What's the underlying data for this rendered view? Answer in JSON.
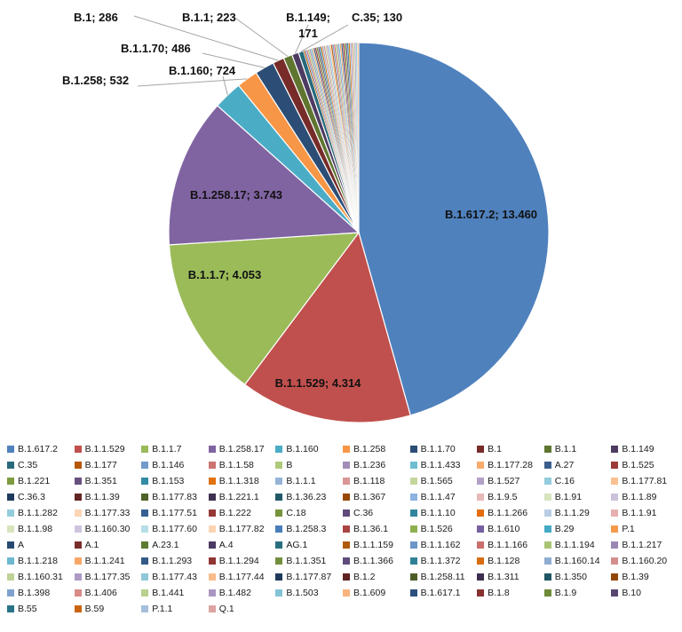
{
  "chart_data": {
    "type": "pie",
    "title": "",
    "slices": [
      {
        "name": "B.1.617.2",
        "value": 13460,
        "label": "B.1.617.2; 13.460",
        "color": "#4F81BD"
      },
      {
        "name": "B.1.1.529",
        "value": 4314,
        "label": "B.1.1.529; 4.314",
        "color": "#C0504D"
      },
      {
        "name": "B.1.1.7",
        "value": 4053,
        "label": "B.1.1.7; 4.053",
        "color": "#9BBB59"
      },
      {
        "name": "B.1.258.17",
        "value": 3743,
        "label": "B.1.258.17; 3.743",
        "color": "#8064A2"
      },
      {
        "name": "B.1.160",
        "value": 724,
        "label": "B.1.160; 724",
        "color": "#4BACC6"
      },
      {
        "name": "B.1.258",
        "value": 532,
        "label": "B.1.258; 532",
        "color": "#F79646"
      },
      {
        "name": "B.1.1.70",
        "value": 486,
        "label": "B.1.1.70; 486",
        "color": "#2C4D75"
      },
      {
        "name": "B.1",
        "value": 286,
        "label": "B.1; 286",
        "color": "#772C2A"
      },
      {
        "name": "B.1.1",
        "value": 223,
        "label": "B.1.1; 223",
        "color": "#5F7530"
      },
      {
        "name": "B.1.149",
        "value": 171,
        "label": "B.1.149; 171",
        "color": "#4D3B62"
      },
      {
        "name": "C.35",
        "value": 130,
        "label": "C.35; 130",
        "color": "#276A7C"
      }
    ],
    "other_slice_colors": [
      "#B65708",
      "#729ACA",
      "#CD7371",
      "#AFC97A",
      "#A18DB6",
      "#6FBDD1",
      "#F9AB6B",
      "#3A5E8C",
      "#9C3A38",
      "#7D9A3F",
      "#66507F",
      "#338CA3",
      "#E07210",
      "#95B3D7",
      "#D99694",
      "#C3D69B",
      "#B2A1C7",
      "#93CDDD",
      "#FAC090"
    ],
    "legend": [
      {
        "name": "B.1.617.2",
        "color": "#4F81BD"
      },
      {
        "name": "B.1.1.529",
        "color": "#C0504D"
      },
      {
        "name": "B.1.1.7",
        "color": "#9BBB59"
      },
      {
        "name": "B.1.258.17",
        "color": "#8064A2"
      },
      {
        "name": "B.1.160",
        "color": "#4BACC6"
      },
      {
        "name": "B.1.258",
        "color": "#F79646"
      },
      {
        "name": "B.1.1.70",
        "color": "#2C4D75"
      },
      {
        "name": "B.1",
        "color": "#772C2A"
      },
      {
        "name": "B.1.1",
        "color": "#5F7530"
      },
      {
        "name": "B.1.149",
        "color": "#4D3B62"
      },
      {
        "name": "C.35",
        "color": "#276A7C"
      },
      {
        "name": "B.1.177",
        "color": "#B65708"
      },
      {
        "name": "B.1.146",
        "color": "#729ACA"
      },
      {
        "name": "B.1.1.58",
        "color": "#CD7371"
      },
      {
        "name": "B",
        "color": "#AFC97A"
      },
      {
        "name": "B.1.236",
        "color": "#A18DB6"
      },
      {
        "name": "B.1.1.433",
        "color": "#6FBDD1"
      },
      {
        "name": "B.1.177.28",
        "color": "#F9AB6B"
      },
      {
        "name": "A.27",
        "color": "#3A5E8C"
      },
      {
        "name": "B.1.525",
        "color": "#9C3A38"
      },
      {
        "name": "B.1.221",
        "color": "#7D9A3F"
      },
      {
        "name": "B.1.351",
        "color": "#66507F"
      },
      {
        "name": "B.1.153",
        "color": "#338CA3"
      },
      {
        "name": "B.1.1.318",
        "color": "#E07210"
      },
      {
        "name": "B.1.1.1",
        "color": "#95B3D7"
      },
      {
        "name": "B.1.118",
        "color": "#D99694"
      },
      {
        "name": "B.1.565",
        "color": "#C3D69B"
      },
      {
        "name": "B.1.527",
        "color": "#B2A1C7"
      },
      {
        "name": "C.16",
        "color": "#93CDDD"
      },
      {
        "name": "B.1.177.81",
        "color": "#FAC090"
      },
      {
        "name": "C.36.3",
        "color": "#1F3A5F"
      },
      {
        "name": "B.1.1.39",
        "color": "#632523"
      },
      {
        "name": "B.1.177.83",
        "color": "#4F6228"
      },
      {
        "name": "B.1.221.1",
        "color": "#3F3151"
      },
      {
        "name": "B.1.36.23",
        "color": "#215967"
      },
      {
        "name": "B.1.367",
        "color": "#974806"
      },
      {
        "name": "B.1.1.47",
        "color": "#8DB3E2"
      },
      {
        "name": "B.1.9.5",
        "color": "#E6B9B8"
      },
      {
        "name": "B.1.91",
        "color": "#D7E4BD"
      },
      {
        "name": "B.1.1.89",
        "color": "#CCC1DA"
      },
      {
        "name": "B.1.1.282",
        "color": "#92CDDC"
      },
      {
        "name": "B.1.177.33",
        "color": "#FCD5B5"
      },
      {
        "name": "B.1.177.51",
        "color": "#376092"
      },
      {
        "name": "B.1.222",
        "color": "#953735"
      },
      {
        "name": "C.18",
        "color": "#77933C"
      },
      {
        "name": "C.36",
        "color": "#604A7B"
      },
      {
        "name": "B.1.1.10",
        "color": "#31859C"
      },
      {
        "name": "B.1.1.266",
        "color": "#E46C0A"
      },
      {
        "name": "B.1.1.29",
        "color": "#B9CDE5"
      },
      {
        "name": "B.1.1.91",
        "color": "#E6B0AE"
      },
      {
        "name": "B.1.1.98",
        "color": "#D8E4BC"
      },
      {
        "name": "B.1.160.30",
        "color": "#CFC4DF"
      },
      {
        "name": "B.1.177.60",
        "color": "#B7DEE8"
      },
      {
        "name": "B.1.177.82",
        "color": "#FBD4B4"
      },
      {
        "name": "B.1.258.3",
        "color": "#4A7EBB"
      },
      {
        "name": "B.1.36.1",
        "color": "#A94442"
      },
      {
        "name": "B.1.526",
        "color": "#8EB04F"
      },
      {
        "name": "B.1.610",
        "color": "#7460A0"
      },
      {
        "name": "B.29",
        "color": "#43A9C4"
      },
      {
        "name": "P.1",
        "color": "#F59A4B"
      },
      {
        "name": "A",
        "color": "#284A72"
      },
      {
        "name": "A.1",
        "color": "#7A2E2B"
      },
      {
        "name": "A.23.1",
        "color": "#5C7A30"
      },
      {
        "name": "A.4",
        "color": "#4B3A63"
      },
      {
        "name": "AG.1",
        "color": "#286F80"
      },
      {
        "name": "B.1.1.159",
        "color": "#B05A0C"
      },
      {
        "name": "B.1.1.162",
        "color": "#6E96C8"
      },
      {
        "name": "B.1.1.166",
        "color": "#C96F6C"
      },
      {
        "name": "B.1.1.194",
        "color": "#A9C574"
      },
      {
        "name": "B.1.1.217",
        "color": "#9B87B4"
      },
      {
        "name": "B.1.1.218",
        "color": "#6BB8CF"
      },
      {
        "name": "B.1.1.241",
        "color": "#F7A768"
      },
      {
        "name": "B.1.1.293",
        "color": "#345A88"
      },
      {
        "name": "B.1.1.294",
        "color": "#8F3634"
      },
      {
        "name": "B.1.1.351",
        "color": "#738E3D"
      },
      {
        "name": "B.1.1.366",
        "color": "#5F4B7C"
      },
      {
        "name": "B.1.1.372",
        "color": "#2F8097"
      },
      {
        "name": "B.1.128",
        "color": "#D86C10"
      },
      {
        "name": "B.1.160.14",
        "color": "#8FADD3"
      },
      {
        "name": "B.1.160.20",
        "color": "#D48F8D"
      },
      {
        "name": "B.1.160.31",
        "color": "#BFD396"
      },
      {
        "name": "B.1.177.35",
        "color": "#AE9BC5"
      },
      {
        "name": "B.1.177.43",
        "color": "#8FC8D9"
      },
      {
        "name": "B.1.177.44",
        "color": "#F8BC8C"
      },
      {
        "name": "B.1.177.87",
        "color": "#203A5C"
      },
      {
        "name": "B.1.2",
        "color": "#5E2321"
      },
      {
        "name": "B.1.258.11",
        "color": "#4C5E26"
      },
      {
        "name": "B.1.311",
        "color": "#3C2F4E"
      },
      {
        "name": "B.1.350",
        "color": "#1F5663"
      },
      {
        "name": "B.1.39",
        "color": "#914606"
      },
      {
        "name": "B.1.398",
        "color": "#7FA2CE"
      },
      {
        "name": "B.1.406",
        "color": "#D88A88"
      },
      {
        "name": "B.1.441",
        "color": "#B9D08E"
      },
      {
        "name": "B.1.482",
        "color": "#A996C1"
      },
      {
        "name": "B.1.503",
        "color": "#82C3D6"
      },
      {
        "name": "B.1.609",
        "color": "#F9B47E"
      },
      {
        "name": "B.1.617.1",
        "color": "#2B4F7E"
      },
      {
        "name": "B.1.8",
        "color": "#883230"
      },
      {
        "name": "B.1.9",
        "color": "#6D8A36"
      },
      {
        "name": "B.10",
        "color": "#57466F"
      },
      {
        "name": "B.55",
        "color": "#2A7489"
      },
      {
        "name": "B.59",
        "color": "#C9650F"
      },
      {
        "name": "P.1.1",
        "color": "#A6BEDC"
      },
      {
        "name": "Q.1",
        "color": "#DDA4A2"
      }
    ]
  }
}
